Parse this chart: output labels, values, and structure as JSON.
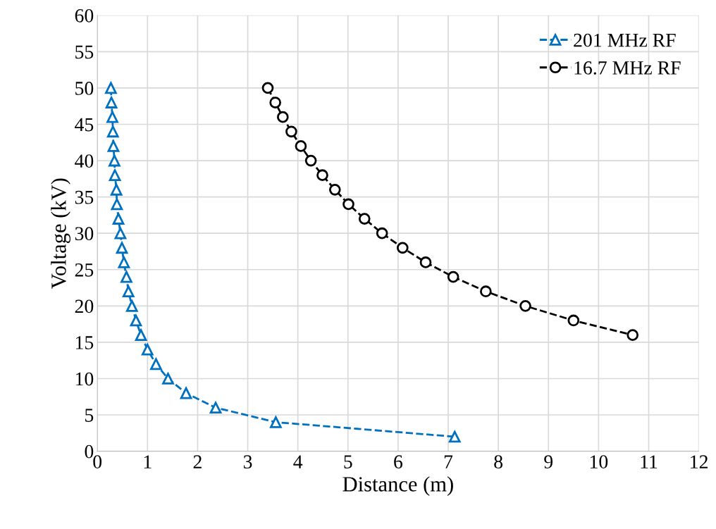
{
  "chart_data": {
    "type": "line",
    "xlabel": "Distance (m)",
    "ylabel": "Voltage (kV)",
    "xlim": [
      0,
      12
    ],
    "xticks": [
      0,
      1,
      2,
      3,
      4,
      5,
      6,
      7,
      8,
      9,
      10,
      11,
      12
    ],
    "ylim": [
      0,
      60
    ],
    "yticks": [
      0,
      5,
      10,
      15,
      20,
      25,
      30,
      35,
      40,
      45,
      50,
      55,
      60
    ],
    "grid": true,
    "legend": "top right",
    "line_style": "dashed",
    "series": [
      {
        "name": "201 MHz RF",
        "color": "#0070c0",
        "marker": "triangle",
        "x": [
          0.27,
          0.28,
          0.3,
          0.31,
          0.32,
          0.34,
          0.35,
          0.38,
          0.39,
          0.42,
          0.46,
          0.49,
          0.53,
          0.58,
          0.62,
          0.69,
          0.77,
          0.87,
          1.0,
          1.17,
          1.41,
          1.77,
          2.36,
          3.56,
          7.13
        ],
        "values": [
          50,
          48,
          46,
          44,
          42,
          40,
          38,
          36,
          34,
          32,
          30,
          28,
          26,
          24,
          22,
          20,
          18,
          16,
          14,
          12,
          10,
          8,
          6,
          4,
          2
        ]
      },
      {
        "name": "16.7 MHz RF",
        "color": "#000000",
        "marker": "circle",
        "x": [
          3.4,
          3.55,
          3.7,
          3.87,
          4.06,
          4.26,
          4.49,
          4.74,
          5.01,
          5.33,
          5.68,
          6.09,
          6.55,
          7.1,
          7.75,
          8.54,
          9.5,
          10.68
        ],
        "values": [
          50,
          48,
          46,
          44,
          42,
          40,
          38,
          36,
          34,
          32,
          30,
          28,
          26,
          24,
          22,
          20,
          18,
          16
        ]
      }
    ]
  }
}
